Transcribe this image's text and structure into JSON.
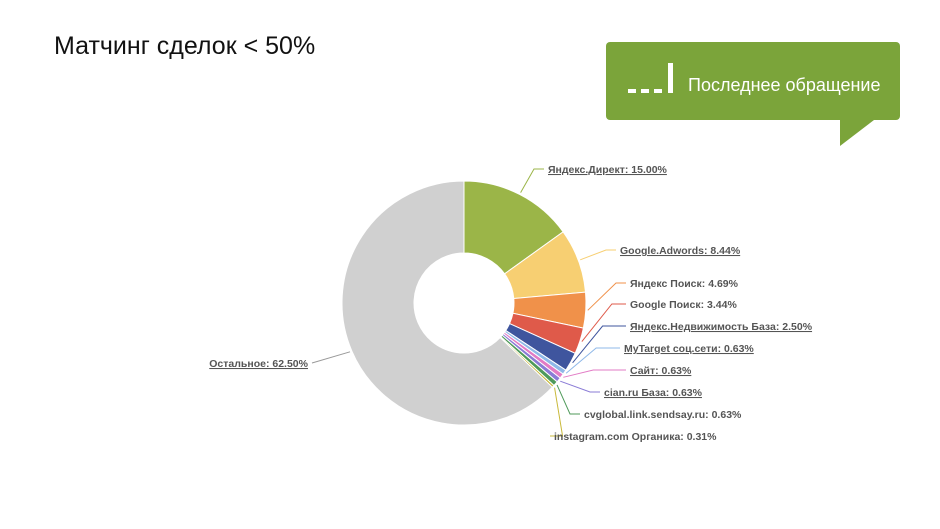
{
  "slide": {
    "title": "Матчинг сделок < 50%"
  },
  "badge": {
    "text": "Последнее обращение",
    "icon": "bar-signal-icon",
    "color": "#7ba43a"
  },
  "chart_data": {
    "type": "pie",
    "variant": "donut",
    "labels": [
      "Яндекс.Директ",
      "Google.Adwords",
      "Яндекс Поиск",
      "Google Поиск",
      "Яндекс.Недвижимость База",
      "MyTarget соц.сети",
      "Сайт",
      "cian.ru База",
      "cvglobal.link.sendsay.ru",
      "instagram.com Органика",
      "Остальное"
    ],
    "values": [
      15.0,
      8.44,
      4.69,
      3.44,
      2.5,
      0.63,
      0.63,
      0.63,
      0.63,
      0.31,
      62.5
    ],
    "value_labels": [
      "15.00%",
      "8.44%",
      "4.69%",
      "3.44%",
      "2.50%",
      "0.63%",
      "0.63%",
      "0.63%",
      "0.63%",
      "0.31%",
      "62.50%"
    ],
    "label_texts": [
      "Яндекс.Директ: 15.00%",
      "Google.Adwords: 8.44%",
      "Яндекс Поиск: 4.69%",
      "Google Поиск: 3.44%",
      "Яндекс.Недвижимость База: 2.50%",
      "MyTarget соц.сети: 0.63%",
      "Сайт: 0.63%",
      "cian.ru База: 0.63%",
      "cvglobal.link.sendsay.ru: 0.63%",
      "instagram.com Органика: 0.31%",
      "Остальное: 62.50%"
    ],
    "colors": [
      "#9bb548",
      "#f7cf72",
      "#f0914a",
      "#df5a4a",
      "#3f559e",
      "#8fb8e8",
      "#e27bc5",
      "#8a7bd6",
      "#4f9a5a",
      "#c9b93a",
      "#d0d0d0"
    ],
    "legend": "none",
    "labels_underlined": [
      true,
      true,
      false,
      false,
      true,
      true,
      true,
      true,
      false,
      false,
      true
    ]
  }
}
